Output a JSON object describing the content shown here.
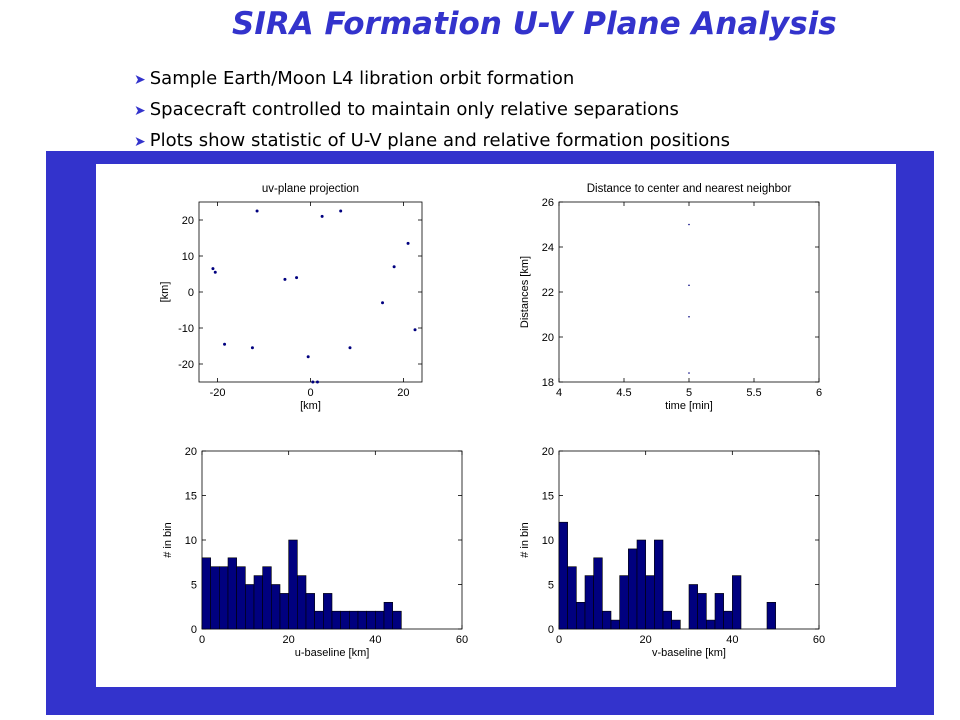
{
  "slide": {
    "title": "SIRA Formation U-V Plane Analysis",
    "bullets": [
      "Sample Earth/Moon L4 libration orbit formation",
      "Spacecraft controlled to maintain only relative separations",
      "Plots show statistic of U-V plane and relative formation positions"
    ],
    "bullet_icon": "arrowhead-bullet-icon",
    "accent_color": "#3333cc",
    "frame_color": "#3333cc",
    "series_color": "#00007f"
  },
  "chart_data": [
    {
      "type": "scatter",
      "title": "uv-plane projection",
      "xlabel": "[km]",
      "ylabel": "[km]",
      "xlim": [
        -24,
        24
      ],
      "ylim": [
        -25,
        25
      ],
      "xticks": [
        -20,
        0,
        20
      ],
      "yticks": [
        -20,
        -10,
        0,
        10,
        20
      ],
      "points": [
        [
          -11.5,
          22.5
        ],
        [
          2.5,
          21.0
        ],
        [
          6.5,
          22.5
        ],
        [
          21.0,
          13.5
        ],
        [
          -21.0,
          6.5
        ],
        [
          -20.5,
          5.5
        ],
        [
          18.0,
          7.0
        ],
        [
          -5.5,
          3.5
        ],
        [
          -3.0,
          4.0
        ],
        [
          15.5,
          -3.0
        ],
        [
          22.5,
          -10.5
        ],
        [
          -18.5,
          -14.5
        ],
        [
          -12.5,
          -15.5
        ],
        [
          8.5,
          -15.5
        ],
        [
          -0.5,
          -18.0
        ],
        [
          0.5,
          -25.0
        ],
        [
          1.5,
          -25.0
        ]
      ]
    },
    {
      "type": "scatter",
      "title": "Distance to center and nearest neighbor",
      "xlabel": "time [min]",
      "ylabel": "Distances [km]",
      "xlim": [
        4,
        6
      ],
      "ylim": [
        18,
        26
      ],
      "xticks": [
        4,
        4.5,
        5,
        5.5,
        6
      ],
      "yticks": [
        18,
        20,
        22,
        24,
        26
      ],
      "points": [
        [
          5,
          25.0
        ],
        [
          5,
          22.3
        ],
        [
          5,
          20.9
        ],
        [
          5,
          18.4
        ]
      ]
    },
    {
      "type": "bar",
      "title": "",
      "xlabel": "u-baseline [km]",
      "ylabel": "# in bin",
      "xlim": [
        0,
        60
      ],
      "ylim": [
        0,
        20
      ],
      "xticks": [
        0,
        20,
        40,
        60
      ],
      "yticks": [
        0,
        5,
        10,
        15,
        20
      ],
      "bin_start": 0,
      "bin_width": 2,
      "values": [
        8,
        7,
        7,
        8,
        7,
        5,
        6,
        7,
        5,
        4,
        10,
        6,
        4,
        2,
        4,
        2,
        2,
        2,
        2,
        2,
        2,
        3,
        2
      ]
    },
    {
      "type": "bar",
      "title": "",
      "xlabel": "v-baseline [km]",
      "ylabel": "# in bin",
      "xlim": [
        0,
        60
      ],
      "ylim": [
        0,
        20
      ],
      "xticks": [
        0,
        20,
        40,
        60
      ],
      "yticks": [
        0,
        5,
        10,
        15,
        20
      ],
      "bin_start": 0,
      "bin_width": 2,
      "values": [
        12,
        7,
        3,
        6,
        8,
        2,
        1,
        6,
        9,
        10,
        6,
        10,
        2,
        1,
        0,
        5,
        4,
        1,
        4,
        2,
        6,
        0,
        0,
        0,
        3
      ]
    }
  ]
}
